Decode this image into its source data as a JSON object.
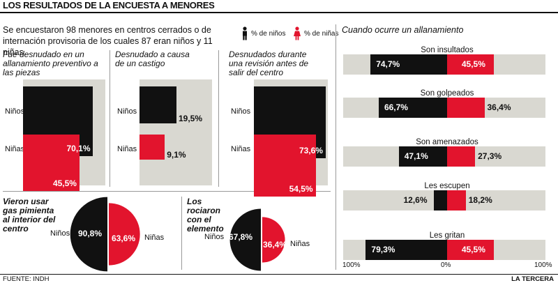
{
  "title": "LOS RESULTADOS DE LA ENCUESTA A MENORES",
  "intro": "Se encuestaron 98 menores en centros cerrados o  de internación provisoria de los cuales 87 eran niños y 11 niñas.",
  "legend": [
    {
      "label": "% de niños",
      "color": "#111111",
      "icon": "boy-figure-icon"
    },
    {
      "label": "% de niñas",
      "color": "#e2142d",
      "icon": "girl-figure-icon"
    }
  ],
  "labels": {
    "boys": "Niños",
    "girls": "Niñas"
  },
  "source": "FUENTE: INDH",
  "brand": "LA TERCERA",
  "chart_data": [
    {
      "type": "bar",
      "subtype": "proportional-square",
      "title": "Fue desnudado en un allanamiento preventivo a las piezas",
      "categories": [
        "Niños",
        "Niñas"
      ],
      "values": [
        70.1,
        45.5
      ],
      "value_labels": [
        "70,1%",
        "45,5%"
      ],
      "unit": "%"
    },
    {
      "type": "bar",
      "subtype": "proportional-square",
      "title": "Desnudado a causa de un castigo",
      "categories": [
        "Niños",
        "Niñas"
      ],
      "values": [
        19.5,
        9.1
      ],
      "value_labels": [
        "19,5%",
        "9,1%"
      ],
      "unit": "%"
    },
    {
      "type": "bar",
      "subtype": "proportional-square",
      "title": "Desnudados durante una revisión antes de salir del centro",
      "categories": [
        "Niños",
        "Niñas"
      ],
      "values": [
        73.6,
        54.5
      ],
      "value_labels": [
        "73,6%",
        "54,5%"
      ],
      "unit": "%"
    },
    {
      "type": "pie",
      "subtype": "split-half-circles",
      "title": "Vieron usar gas pimienta al interior del centro",
      "categories": [
        "Niños",
        "Niñas"
      ],
      "values": [
        90.8,
        63.6
      ],
      "value_labels": [
        "90,8%",
        "63,6%"
      ],
      "unit": "%"
    },
    {
      "type": "pie",
      "subtype": "split-half-circles",
      "title": "Los rociaron con el elemento",
      "categories": [
        "Niños",
        "Niñas"
      ],
      "values": [
        67.8,
        36.4
      ],
      "value_labels": [
        "67,8%",
        "36,4%"
      ],
      "unit": "%"
    },
    {
      "type": "bar",
      "subtype": "diverging",
      "title": "Cuando ocurre un allanamiento",
      "categories": [
        "Son insultados",
        "Son golpeados",
        "Son amenazados",
        "Les escupen",
        "Les gritan"
      ],
      "series": [
        {
          "name": "% de niños",
          "values": [
            74.7,
            66.7,
            47.1,
            12.6,
            79.3
          ],
          "labels": [
            "74,7%",
            "66,7%",
            "47,1%",
            "12,6%",
            "79,3%"
          ]
        },
        {
          "name": "% de niñas",
          "values": [
            45.5,
            36.4,
            27.3,
            18.2,
            45.5
          ],
          "labels": [
            "45,5%",
            "36,4%",
            "27,3%",
            "18,2%",
            "45,5%"
          ]
        }
      ],
      "axis_ticks": [
        "100%",
        "0%",
        "100%"
      ],
      "xlim": [
        -100,
        100
      ]
    }
  ]
}
